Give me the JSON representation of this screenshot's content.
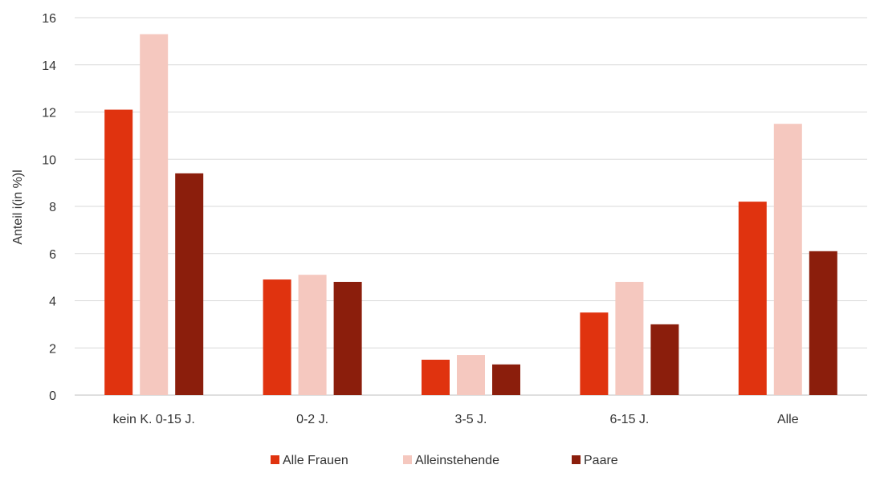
{
  "chart_data": {
    "type": "bar",
    "title": "",
    "xlabel": "",
    "ylabel": "Anteil i(in %)l",
    "ylim": [
      0,
      16
    ],
    "yticks": [
      0,
      2,
      4,
      6,
      8,
      10,
      12,
      14,
      16
    ],
    "grid": true,
    "legend_position": "bottom",
    "categories": [
      "kein K. 0-15 J.",
      "0-2 J.",
      "3-5 J.",
      "6-15 J.",
      "Alle"
    ],
    "series": [
      {
        "name": "Alle Frauen",
        "color": "#e0330f",
        "values": [
          12.1,
          4.9,
          1.5,
          3.5,
          8.2
        ]
      },
      {
        "name": "Alleinstehende",
        "color": "#f5c8bf",
        "values": [
          15.3,
          5.1,
          1.7,
          4.8,
          11.5
        ]
      },
      {
        "name": "Paare",
        "color": "#8b1e0c",
        "values": [
          9.4,
          4.8,
          1.3,
          3.0,
          6.1
        ]
      }
    ]
  }
}
